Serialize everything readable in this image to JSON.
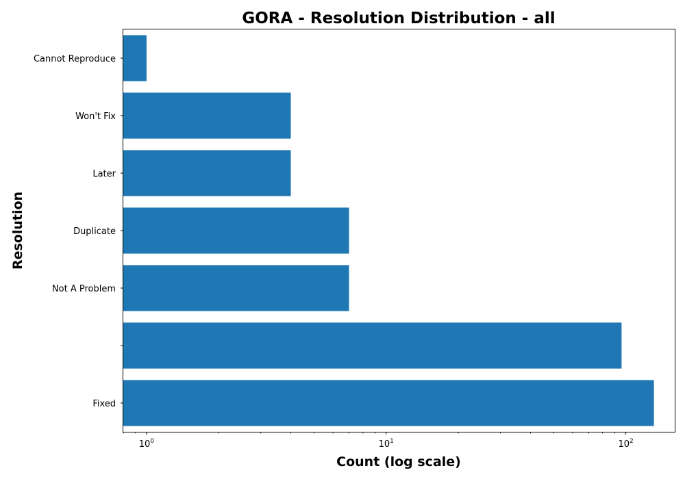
{
  "chart_data": {
    "type": "bar",
    "orientation": "horizontal",
    "title": "GORA - Resolution Distribution - all",
    "xlabel": "Count (log scale)",
    "ylabel": "Resolution",
    "x_scale": "log",
    "xlim": [
      0.8,
      160
    ],
    "x_ticks": [
      {
        "value": 1,
        "base": "10",
        "exp": "0"
      },
      {
        "value": 10,
        "base": "10",
        "exp": "1"
      },
      {
        "value": 100,
        "base": "10",
        "exp": "2"
      }
    ],
    "categories": [
      "Cannot Reproduce",
      "Won't Fix",
      "Later",
      "Duplicate",
      "Not A Problem",
      "",
      "Fixed"
    ],
    "values": [
      1,
      4,
      4,
      7,
      7,
      96,
      131
    ],
    "bar_color": "#1f77b4",
    "grid": false,
    "legend": false
  }
}
